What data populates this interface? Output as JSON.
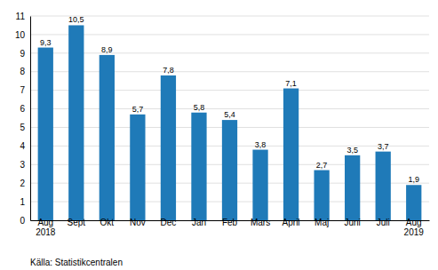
{
  "chart_data": {
    "type": "bar",
    "categories": [
      "Aug\n2018",
      "Sept",
      "Okt",
      "Nov",
      "Dec",
      "Jan",
      "Feb",
      "Mars",
      "April",
      "Maj",
      "Juni",
      "Juli",
      "Aug\n2019"
    ],
    "values": [
      9.3,
      10.5,
      8.9,
      5.7,
      7.8,
      5.8,
      5.4,
      3.8,
      7.1,
      2.7,
      3.5,
      3.7,
      1.9
    ],
    "value_labels": [
      "9,3",
      "10,5",
      "8,9",
      "5,7",
      "7,8",
      "5,8",
      "5,4",
      "3,8",
      "7,1",
      "2,7",
      "3,5",
      "3,7",
      "1,9"
    ],
    "data_labels": true,
    "color": "#1f7ab8",
    "ylim": [
      0,
      11
    ],
    "yticks": [
      0,
      1,
      2,
      3,
      4,
      5,
      6,
      7,
      8,
      9,
      10,
      11
    ],
    "grid": true,
    "source": "Källa: Statistikcentralen"
  }
}
